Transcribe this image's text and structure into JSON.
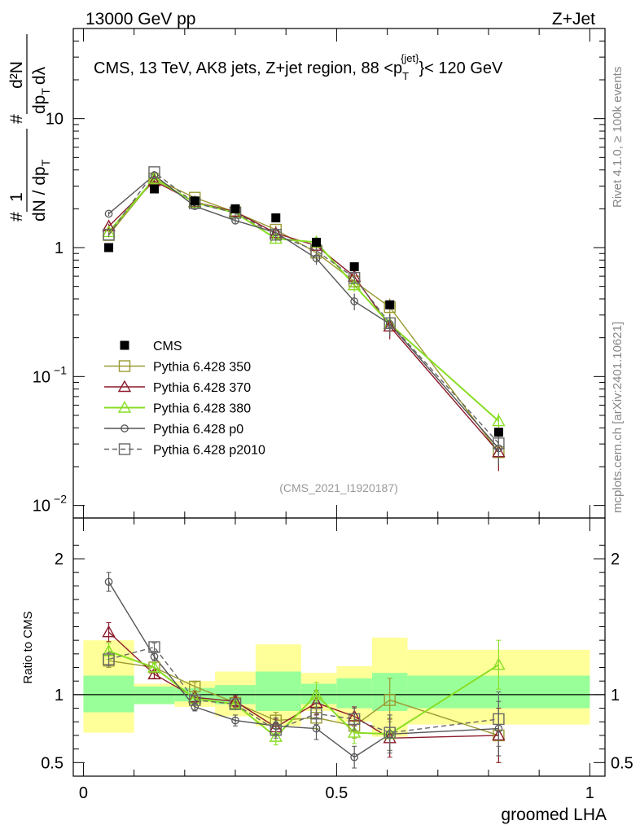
{
  "header": {
    "left": "13000 GeV pp",
    "right": "Z+Jet"
  },
  "side_labels": {
    "rivet": "Rivet 4.1.0, ≥ 100k events",
    "mcplots": "mcplots.cern.ch [arXiv:2401.10621]"
  },
  "colors": {
    "cms": "#000000",
    "p350": "#9a9a30",
    "p370": "#8b1a2b",
    "p380": "#88dd22",
    "p0": "#555555",
    "p2010": "#666666",
    "band_inner": "#99ff99",
    "band_outer": "#ffff99"
  },
  "chart_data": {
    "type": "line",
    "title": "CMS, 13 TeV, AK8 jets, Z+jet region, 88 <p_T^{jet}< 120 GeV",
    "title_parts": {
      "prefix": "CMS, 13 TeV, AK8 jets, Z+jet region, 88 <",
      "p": "p",
      "sub": "T",
      "sup": "{jet}",
      "suffix": "}< 120 GeV"
    },
    "xlabel": "groomed LHA",
    "ylabel_main": {
      "frac1": {
        "num": "1",
        "den": "dN / dp",
        "den_sub": "T"
      },
      "frac2": {
        "num": "d²N",
        "den": "dp",
        "den_sub": "T",
        "den_tail": "dλ"
      },
      "hash": "#"
    },
    "ylabel_ratio": "Ratio to CMS",
    "analysis_tag": "(CMS_2021_I1920187)",
    "xlim": [
      -0.02,
      1.03
    ],
    "ylim_main": [
      0.008,
      50
    ],
    "ylim_ratio": [
      0.4,
      2.3
    ],
    "x_ticks": [
      "0",
      "0.5",
      "1"
    ],
    "x_tick_values": [
      0,
      0.5,
      1
    ],
    "y_ticks_main": [
      {
        "v": 0.01,
        "base": "10",
        "exp": "−2"
      },
      {
        "v": 0.1,
        "base": "10",
        "exp": "−1"
      },
      {
        "v": 1,
        "base": "1",
        "exp": ""
      },
      {
        "v": 10,
        "base": "10",
        "exp": ""
      }
    ],
    "y_ticks_ratio": [
      {
        "v": 0.5,
        "label": "0.5"
      },
      {
        "v": 1,
        "label": "1"
      },
      {
        "v": 2,
        "label": "2"
      }
    ],
    "bins": [
      [
        0,
        0.1
      ],
      [
        0.1,
        0.18
      ],
      [
        0.18,
        0.26
      ],
      [
        0.26,
        0.34
      ],
      [
        0.34,
        0.43
      ],
      [
        0.43,
        0.5
      ],
      [
        0.5,
        0.57
      ],
      [
        0.57,
        0.64
      ],
      [
        0.64,
        1.0
      ]
    ],
    "x": [
      0.05,
      0.14,
      0.22,
      0.3,
      0.38,
      0.46,
      0.535,
      0.605,
      0.82
    ],
    "data_points": [
      1.0,
      2.85,
      2.3,
      2.0,
      1.7,
      1.1,
      0.71,
      0.36,
      0.037
    ],
    "band_inner": [
      [
        0.87,
        1.14
      ],
      [
        0.93,
        1.06
      ],
      [
        0.95,
        1.05
      ],
      [
        0.93,
        1.07
      ],
      [
        0.88,
        1.17
      ],
      [
        0.93,
        1.08
      ],
      [
        0.9,
        1.12
      ],
      [
        0.88,
        1.16
      ],
      [
        0.9,
        1.14
      ]
    ],
    "band_outer": [
      [
        0.72,
        1.4
      ],
      [
        0.93,
        1.08
      ],
      [
        0.91,
        1.1
      ],
      [
        0.84,
        1.17
      ],
      [
        0.77,
        1.37
      ],
      [
        0.88,
        1.16
      ],
      [
        0.8,
        1.21
      ],
      [
        0.69,
        1.42
      ],
      [
        0.78,
        1.33
      ]
    ],
    "series": [
      {
        "name": "Pythia 6.428 350",
        "key": "p350",
        "marker": "square_open",
        "dash": false,
        "ratio": [
          1.25,
          1.2,
          1.06,
          0.94,
          0.81,
          0.83,
          0.77,
          0.96,
          0.7
        ],
        "ratio_err": [
          0.05,
          0.03,
          0.03,
          0.04,
          0.06,
          0.08,
          0.09,
          0.16,
          0.2
        ]
      },
      {
        "name": "Pythia 6.428 370",
        "key": "p370",
        "marker": "triangle_open",
        "dash": false,
        "ratio": [
          1.46,
          1.15,
          0.98,
          0.95,
          0.76,
          0.94,
          0.84,
          0.68,
          0.7
        ],
        "ratio_err": [
          0.07,
          0.03,
          0.03,
          0.04,
          0.06,
          0.09,
          0.07,
          0.14,
          0.2
        ]
      },
      {
        "name": "Pythia 6.428 380",
        "key": "p380",
        "marker": "triangle_open",
        "dash": false,
        "ratio": [
          1.32,
          1.2,
          0.97,
          0.93,
          0.69,
          1.0,
          0.72,
          0.71,
          1.22
        ],
        "ratio_err": [
          0.06,
          0.03,
          0.03,
          0.04,
          0.06,
          0.09,
          0.08,
          0.12,
          0.18
        ]
      },
      {
        "name": "Pythia 6.428 p0",
        "key": "p0",
        "marker": "circle_open",
        "dash": false,
        "ratio": [
          1.83,
          1.28,
          0.91,
          0.81,
          0.77,
          0.75,
          0.54,
          0.71,
          0.75
        ],
        "ratio_err": [
          0.07,
          0.03,
          0.03,
          0.04,
          0.06,
          0.08,
          0.08,
          0.14,
          0.2
        ]
      },
      {
        "name": "Pythia 6.428 p2010",
        "key": "p2010",
        "marker": "square_open",
        "dash": true,
        "ratio": [
          1.26,
          1.35,
          0.96,
          0.93,
          0.74,
          0.86,
          0.82,
          0.72,
          0.82
        ],
        "ratio_err": [
          0.05,
          0.03,
          0.03,
          0.04,
          0.06,
          0.08,
          0.08,
          0.13,
          0.2
        ]
      }
    ],
    "legend": [
      {
        "label": "CMS",
        "key": "cms",
        "marker": "square_filled",
        "dash": false
      },
      {
        "label": "Pythia 6.428 350",
        "key": "p350",
        "marker": "square_open",
        "dash": false
      },
      {
        "label": "Pythia 6.428 370",
        "key": "p370",
        "marker": "triangle_open",
        "dash": false
      },
      {
        "label": "Pythia 6.428 380",
        "key": "p380",
        "marker": "triangle_open",
        "dash": false
      },
      {
        "label": "Pythia 6.428 p0",
        "key": "p0",
        "marker": "circle_open",
        "dash": false
      },
      {
        "label": "Pythia 6.428 p2010",
        "key": "p2010",
        "marker": "square_open",
        "dash": true
      }
    ],
    "legend_position": "lower-left",
    "grid": false
  }
}
